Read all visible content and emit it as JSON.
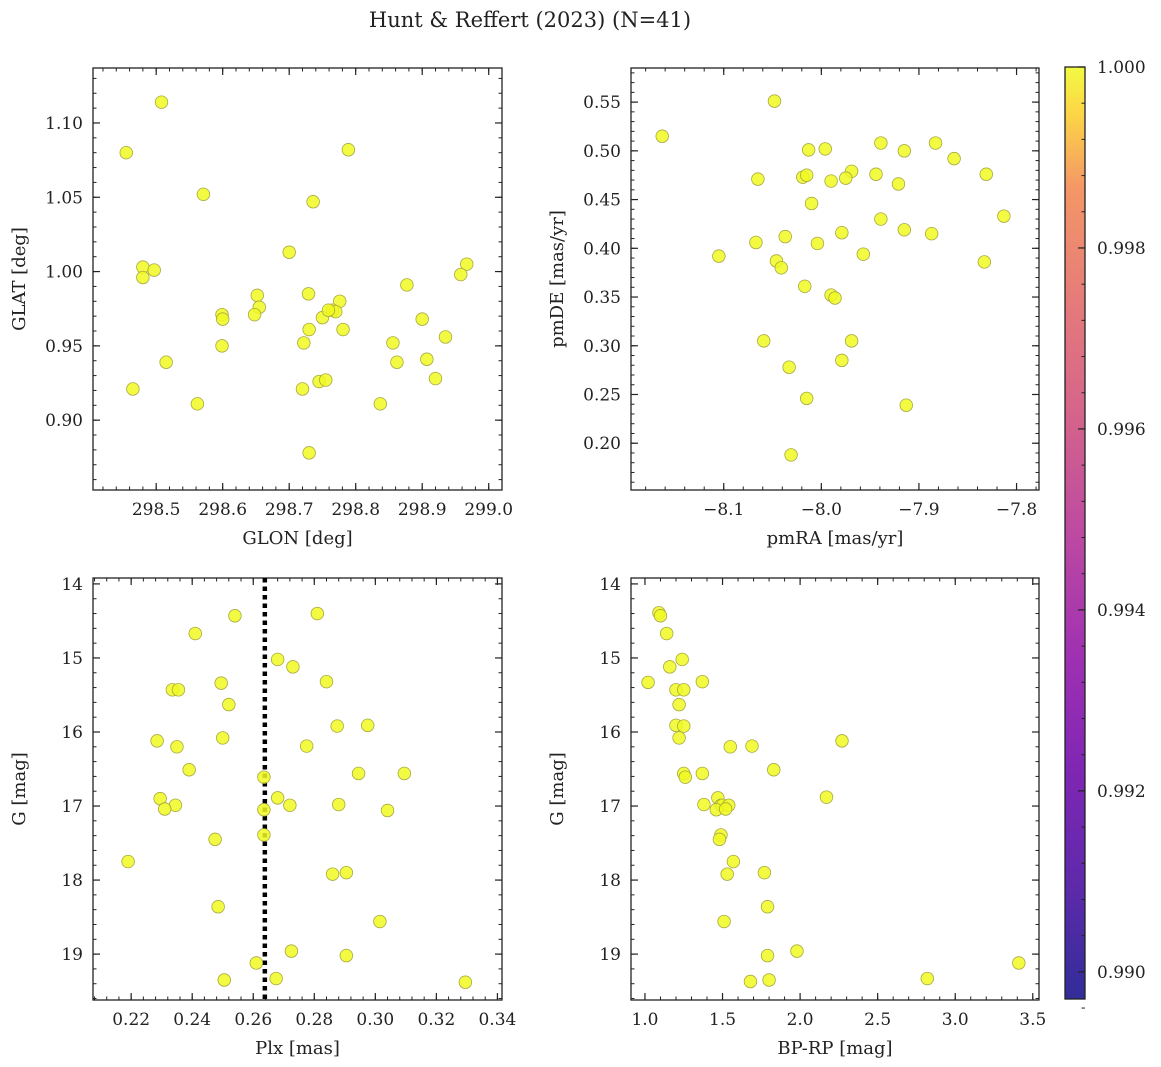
{
  "figure_title": "Hunt & Reffert (2023) (N=41)",
  "colors": {
    "marker_fill": "#F0F921",
    "marker_edge": "#A8A840",
    "vline": "#000000"
  },
  "colorbar": {
    "min": 0.9897,
    "max": 1.0,
    "ticks": [
      0.99,
      0.992,
      0.994,
      0.996,
      0.998,
      1.0
    ],
    "tick_labels": [
      "0.990",
      "0.992",
      "0.994",
      "0.996",
      "0.998",
      "1.000"
    ],
    "colormap": "plasma"
  },
  "chart_data": [
    {
      "type": "scatter",
      "title": "",
      "xlabel": "GLON [deg]",
      "ylabel": "GLAT [deg]",
      "xlim": [
        298.405,
        299.02
      ],
      "ylim": [
        0.853,
        1.137
      ],
      "xticks": [
        298.5,
        298.6,
        298.7,
        298.8,
        298.9,
        299.0
      ],
      "xtick_labels": [
        "298.5",
        "298.6",
        "298.7",
        "298.8",
        "298.9",
        "299.0"
      ],
      "yticks": [
        0.9,
        0.95,
        1.0,
        1.05,
        1.1
      ],
      "ytick_labels": [
        "0.90",
        "0.95",
        "1.00",
        "1.05",
        "1.10"
      ],
      "x": [
        298.455,
        298.508,
        298.789,
        298.571,
        298.736,
        298.7,
        298.48,
        298.497,
        298.48,
        298.967,
        298.958,
        298.652,
        298.655,
        298.729,
        298.776,
        298.765,
        298.77,
        298.599,
        298.6,
        298.648,
        298.75,
        298.73,
        298.781,
        298.877,
        298.9,
        298.935,
        298.856,
        298.722,
        298.599,
        298.515,
        298.862,
        298.907,
        298.465,
        298.72,
        298.745,
        298.755,
        298.92,
        298.837,
        298.562,
        298.73,
        298.759
      ],
      "y": [
        1.08,
        1.114,
        1.082,
        1.052,
        1.047,
        1.013,
        1.003,
        1.001,
        0.996,
        1.005,
        0.998,
        0.984,
        0.976,
        0.985,
        0.98,
        0.974,
        0.973,
        0.971,
        0.968,
        0.971,
        0.969,
        0.961,
        0.961,
        0.991,
        0.968,
        0.956,
        0.952,
        0.952,
        0.95,
        0.939,
        0.939,
        0.941,
        0.921,
        0.921,
        0.926,
        0.927,
        0.928,
        0.911,
        0.911,
        0.878,
        0.974
      ]
    },
    {
      "type": "scatter",
      "title": "",
      "xlabel": "pmRA [mas/yr]",
      "ylabel": "pmDE [mas/yr]",
      "xlim": [
        -8.195,
        -7.777
      ],
      "ylim": [
        0.152,
        0.585
      ],
      "xticks": [
        -8.1,
        -8.0,
        -7.9,
        -7.8
      ],
      "xtick_labels": [
        "−8.1",
        "−8.0",
        "−7.9",
        "−7.8"
      ],
      "yticks": [
        0.2,
        0.25,
        0.3,
        0.35,
        0.4,
        0.45,
        0.5,
        0.55
      ],
      "ytick_labels": [
        "0.20",
        "0.25",
        "0.30",
        "0.35",
        "0.40",
        "0.45",
        "0.50",
        "0.55"
      ],
      "x": [
        -8.048,
        -8.163,
        -7.883,
        -7.939,
        -7.996,
        -8.013,
        -7.915,
        -7.864,
        -8.065,
        -7.944,
        -7.969,
        -7.975,
        -7.99,
        -8.019,
        -8.015,
        -7.921,
        -7.831,
        -8.01,
        -7.939,
        -7.979,
        -7.813,
        -8.004,
        -7.915,
        -8.037,
        -7.887,
        -8.067,
        -8.105,
        -7.957,
        -7.833,
        -8.046,
        -8.041,
        -8.017,
        -7.99,
        -7.986,
        -8.059,
        -7.969,
        -7.979,
        -8.033,
        -8.015,
        -7.913,
        -8.031
      ],
      "y": [
        0.551,
        0.515,
        0.508,
        0.508,
        0.502,
        0.501,
        0.5,
        0.492,
        0.471,
        0.476,
        0.479,
        0.472,
        0.469,
        0.473,
        0.475,
        0.466,
        0.476,
        0.446,
        0.43,
        0.416,
        0.433,
        0.405,
        0.419,
        0.412,
        0.415,
        0.406,
        0.392,
        0.394,
        0.386,
        0.387,
        0.38,
        0.361,
        0.352,
        0.349,
        0.305,
        0.305,
        0.285,
        0.278,
        0.246,
        0.239,
        0.188
      ]
    },
    {
      "type": "scatter",
      "title": "",
      "xlabel": "Plx [mas]",
      "ylabel": "G [mag]",
      "xlim": [
        0.2075,
        0.3415
      ],
      "ylim": [
        19.62,
        13.92
      ],
      "y_inverted": true,
      "vline_x": 0.2638,
      "xticks": [
        0.22,
        0.24,
        0.26,
        0.28,
        0.3,
        0.32,
        0.34
      ],
      "xtick_labels": [
        "0.22",
        "0.24",
        "0.26",
        "0.28",
        "0.30",
        "0.32",
        "0.34"
      ],
      "yticks": [
        14,
        15,
        16,
        17,
        18,
        19
      ],
      "ytick_labels": [
        "14",
        "15",
        "16",
        "17",
        "18",
        "19"
      ],
      "x": [
        0.254,
        0.281,
        0.241,
        0.268,
        0.273,
        0.284,
        0.2495,
        0.2335,
        0.2355,
        0.252,
        0.2875,
        0.2975,
        0.2285,
        0.25,
        0.235,
        0.2775,
        0.239,
        0.2945,
        0.3095,
        0.2635,
        0.268,
        0.2295,
        0.272,
        0.288,
        0.2345,
        0.231,
        0.2635,
        0.304,
        0.2635,
        0.2475,
        0.219,
        0.286,
        0.2905,
        0.2485,
        0.3015,
        0.2725,
        0.2905,
        0.261,
        0.2675,
        0.2505,
        0.3295
      ],
      "y": [
        14.43,
        14.4,
        14.67,
        15.02,
        15.12,
        15.32,
        15.34,
        15.43,
        15.43,
        15.63,
        15.92,
        15.91,
        16.12,
        16.08,
        16.2,
        16.19,
        16.51,
        16.56,
        16.56,
        16.61,
        16.89,
        16.9,
        16.99,
        16.98,
        16.99,
        17.04,
        17.05,
        17.06,
        17.39,
        17.45,
        17.75,
        17.92,
        17.9,
        18.36,
        18.56,
        18.96,
        19.02,
        19.12,
        19.33,
        19.35,
        19.38
      ]
    },
    {
      "type": "scatter",
      "title": "",
      "xlabel": "BP-RP [mag]",
      "ylabel": "G [mag]",
      "xlim": [
        0.91,
        3.54
      ],
      "ylim": [
        19.62,
        13.92
      ],
      "y_inverted": true,
      "xticks": [
        1.0,
        1.5,
        2.0,
        2.5,
        3.0,
        3.5
      ],
      "xtick_labels": [
        "1.0",
        "1.5",
        "2.0",
        "2.5",
        "3.0",
        "3.5"
      ],
      "yticks": [
        14,
        15,
        16,
        17,
        18,
        19
      ],
      "ytick_labels": [
        "14",
        "15",
        "16",
        "17",
        "18",
        "19"
      ],
      "x": [
        1.09,
        1.1,
        1.14,
        1.24,
        1.16,
        1.02,
        1.37,
        1.2,
        1.25,
        1.22,
        1.2,
        1.25,
        1.22,
        2.27,
        1.55,
        1.69,
        1.83,
        1.25,
        1.37,
        1.26,
        1.47,
        1.38,
        1.49,
        1.5,
        1.54,
        1.46,
        1.52,
        2.17,
        1.49,
        1.48,
        1.57,
        1.53,
        1.77,
        1.79,
        1.51,
        1.98,
        1.79,
        3.41,
        2.82,
        1.68,
        1.8
      ],
      "y": [
        14.39,
        14.43,
        14.67,
        15.02,
        15.12,
        15.33,
        15.32,
        15.43,
        15.43,
        15.63,
        15.91,
        15.92,
        16.08,
        16.12,
        16.2,
        16.19,
        16.51,
        16.56,
        16.56,
        16.61,
        16.89,
        16.98,
        16.99,
        16.99,
        16.99,
        17.05,
        17.04,
        16.88,
        17.39,
        17.45,
        17.75,
        17.92,
        17.9,
        18.36,
        18.56,
        18.96,
        19.02,
        19.12,
        19.33,
        19.37,
        19.35
      ]
    }
  ]
}
